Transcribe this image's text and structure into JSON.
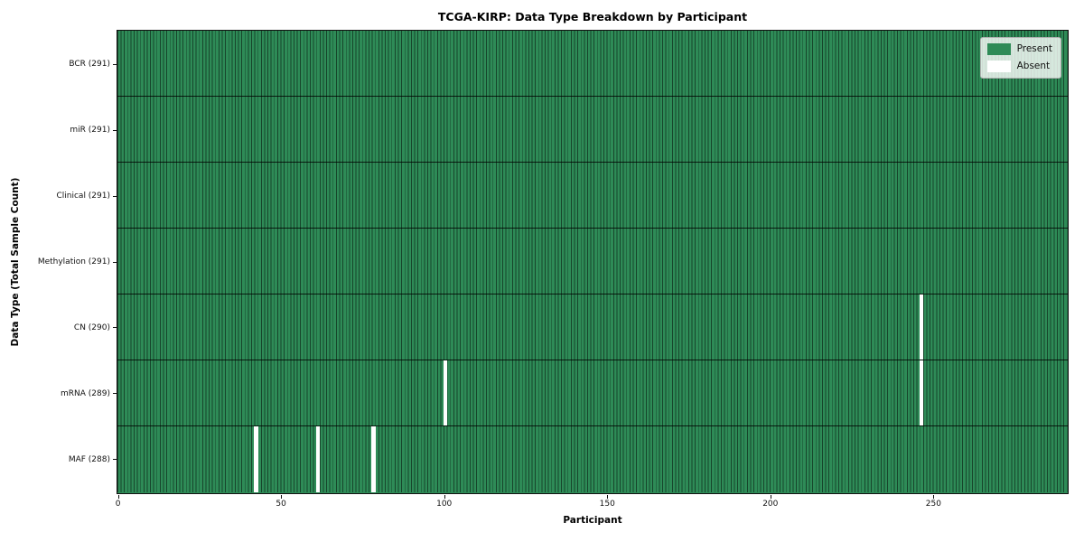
{
  "title": "TCGA-KIRP: Data Type Breakdown by Participant",
  "xlabel": "Participant",
  "ylabel": "Data Type (Total Sample Count)",
  "legend": {
    "present_label": "Present",
    "absent_label": "Absent"
  },
  "colors": {
    "present": "#2e8b57",
    "absent": "#ffffff",
    "bar_edge": "rgba(0,0,0,0.5)",
    "row_divider": "rgba(0,0,0,0.8)"
  },
  "chart_data": {
    "type": "heatmap",
    "title": "TCGA-KIRP: Data Type Breakdown by Participant",
    "xlabel": "Participant",
    "ylabel": "Data Type (Total Sample Count)",
    "legend_entries": [
      "Present",
      "Absent"
    ],
    "legend_position": "upper right",
    "grid": false,
    "x_range": [
      0,
      291
    ],
    "n_participants": 291,
    "x_ticks": [
      0,
      50,
      100,
      150,
      200,
      250
    ],
    "rows": [
      {
        "label": "BCR (291)",
        "data_type": "BCR",
        "sample_count": 291,
        "absent_participants": []
      },
      {
        "label": "miR (291)",
        "data_type": "miR",
        "sample_count": 291,
        "absent_participants": []
      },
      {
        "label": "Clinical (291)",
        "data_type": "Clinical",
        "sample_count": 291,
        "absent_participants": []
      },
      {
        "label": "Methylation (291)",
        "data_type": "Methylation",
        "sample_count": 291,
        "absent_participants": []
      },
      {
        "label": "CN (290)",
        "data_type": "CN",
        "sample_count": 290,
        "absent_participants": [
          246
        ]
      },
      {
        "label": "mRNA (289)",
        "data_type": "mRNA",
        "sample_count": 289,
        "absent_participants": [
          100,
          246
        ]
      },
      {
        "label": "MAF (288)",
        "data_type": "MAF",
        "sample_count": 288,
        "absent_participants": [
          42,
          61,
          78
        ]
      }
    ]
  }
}
